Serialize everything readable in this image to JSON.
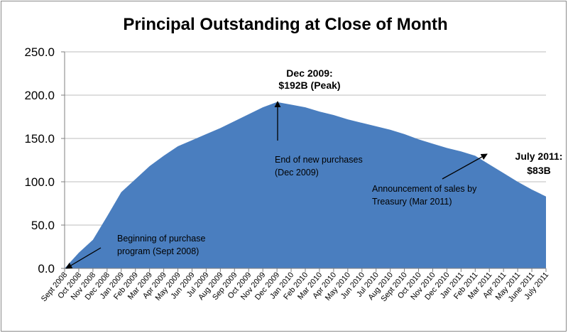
{
  "chart_data": {
    "type": "area",
    "title": "Principal Outstanding at Close of Month",
    "xlabel": "",
    "ylabel": "",
    "ylim": [
      0,
      250
    ],
    "yticks": [
      "0.0",
      "50.0",
      "100.0",
      "150.0",
      "200.0",
      "250.0"
    ],
    "grid": true,
    "legend": "none",
    "fill_color": "#4a7ebf",
    "categories": [
      "Sept 2008",
      "Oct 2008",
      "Nov 2008",
      "Dec 2008",
      "Jan 2009",
      "Feb 2009",
      "Mar 2009",
      "Apr 2009",
      "May 2009",
      "Jun 2009",
      "Jul 2009",
      "Aug 2009",
      "Sep 2009",
      "Oct 2009",
      "Nov 2009",
      "Dec 2009",
      "Jan 2010",
      "Feb 2010",
      "Mar 2010",
      "Apr 2010",
      "May 2010",
      "Jun 2010",
      "Jul 2010",
      "Aug 2010",
      "Sept 2010",
      "Oct 2010",
      "Nov 2010",
      "Dec 2010",
      "Jan 2011",
      "Feb 2011",
      "Mar 2011",
      "Apr 2011",
      "May 2011",
      "June 2011",
      "July 2011"
    ],
    "values": [
      0,
      18,
      33,
      60,
      88,
      103,
      118,
      130,
      141,
      148,
      155,
      162,
      170,
      178,
      186,
      192,
      189,
      186,
      181,
      177,
      172,
      168,
      164,
      160,
      155,
      149,
      144,
      139,
      135,
      130,
      120,
      110,
      100,
      91,
      83
    ],
    "annotations": [
      {
        "id": "peak",
        "lines": [
          "Dec 2009:",
          "$192B (Peak)"
        ],
        "bold": true
      },
      {
        "id": "end",
        "lines": [
          "End of new purchases",
          "(Dec  2009)"
        ],
        "bold": false
      },
      {
        "id": "treasury",
        "lines": [
          "Announcement of sales by",
          "Treasury (Mar 2011)"
        ],
        "bold": false
      },
      {
        "id": "begin",
        "lines": [
          "Beginning of purchase",
          "program (Sept 2008)"
        ],
        "bold": false
      },
      {
        "id": "july",
        "lines": [
          "July 2011:",
          "$83B"
        ],
        "bold": true
      }
    ]
  }
}
